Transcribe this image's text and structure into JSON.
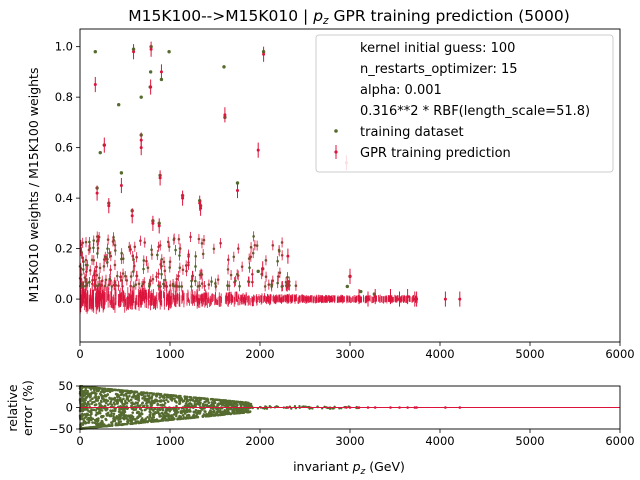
{
  "chart_data": [
    {
      "type": "scatter",
      "title": "M15K100-->M15K010 | p_z GPR training prediction (5000)",
      "title_parts": {
        "prefix": "M15K100-->M15K010 | ",
        "var": "p",
        "sub": "z",
        "suffix": " GPR training prediction (5000)"
      },
      "xlabel": "",
      "ylabel": "M15K010 weights / M15K100 weights",
      "xlim": [
        0,
        6000
      ],
      "ylim": [
        -0.17,
        1.07
      ],
      "xticks": [
        0,
        1000,
        2000,
        3000,
        4000,
        5000,
        6000
      ],
      "yticks": [
        0.0,
        0.2,
        0.4,
        0.6,
        0.8,
        1.0
      ],
      "xtick_labels": [
        "0",
        "1000",
        "2000",
        "3000",
        "4000",
        "5000",
        "6000"
      ],
      "ytick_labels": [
        "0.0",
        "0.2",
        "0.4",
        "0.6",
        "0.8",
        "1.0"
      ],
      "legend_position": "top-right",
      "legend": {
        "text_entries": [
          "kernel initial guess: 100",
          "n_restarts_optimizer: 15",
          "alpha: 0.001",
          "0.316**2 * RBF(length_scale=51.8)"
        ],
        "series_entries": [
          "training dataset",
          "GPR training prediction"
        ]
      },
      "colors": {
        "training": "#556b2f",
        "prediction": "#dc143c"
      },
      "series": [
        {
          "name": "training dataset",
          "marker": "dot",
          "x": [
            595,
            790,
            990,
            2040,
            170,
            430,
            785,
            905,
            1600,
            1610,
            680,
            780,
            680,
            270,
            225,
            1750,
            890,
            1140,
            1330,
            320,
            190,
            460,
            580,
            810,
            880,
            1340,
            1980,
            2030,
            3000,
            3270,
            3120,
            2970
          ],
          "y": [
            0.99,
            1.0,
            0.98,
            0.98,
            0.98,
            0.77,
            0.9,
            0.87,
            0.92,
            0.72,
            0.8,
            0.84,
            0.65,
            0.61,
            0.58,
            0.46,
            0.49,
            0.41,
            0.39,
            0.38,
            0.44,
            0.5,
            0.35,
            0.31,
            0.3,
            0.37,
            0.11,
            0.12,
            0.09,
            0.02,
            0.03,
            0.05
          ]
        },
        {
          "name": "GPR training prediction",
          "marker": "errorbar",
          "x": [
            595,
            790,
            2040,
            170,
            785,
            905,
            1610,
            680,
            680,
            270,
            1750,
            890,
            1140,
            1330,
            320,
            190,
            460,
            580,
            810,
            880,
            1340,
            1980,
            2030,
            2310,
            3000,
            2960,
            3280,
            3450,
            3550,
            3640,
            3720,
            3740,
            4060,
            4220,
            3100,
            3200
          ],
          "y": [
            0.98,
            0.99,
            0.97,
            0.85,
            0.84,
            0.9,
            0.73,
            0.6,
            0.63,
            0.61,
            0.43,
            0.48,
            0.4,
            0.38,
            0.37,
            0.42,
            0.45,
            0.33,
            0.3,
            0.29,
            0.36,
            0.59,
            0.12,
            0.17,
            0.09,
            0.54,
            0.01,
            0.01,
            0.0,
            0.01,
            0.0,
            0.0,
            0.0,
            0.0,
            0.01,
            0.0
          ],
          "yerr": [
            0.03,
            0.03,
            0.03,
            0.03,
            0.03,
            0.03,
            0.03,
            0.03,
            0.03,
            0.03,
            0.03,
            0.03,
            0.03,
            0.03,
            0.03,
            0.03,
            0.03,
            0.03,
            0.03,
            0.03,
            0.03,
            0.03,
            0.03,
            0.03,
            0.03,
            0.03,
            0.03,
            0.03,
            0.03,
            0.03,
            0.03,
            0.03,
            0.03,
            0.03,
            0.03,
            0.03
          ]
        },
        {
          "name": "",
          "marker": "dense_band",
          "x_range": [
            0,
            3750
          ],
          "y_center": 0.0,
          "y_spread": 0.05
        }
      ]
    },
    {
      "type": "scatter",
      "xlabel_parts": {
        "prefix": "invariant ",
        "var": "p",
        "sub": "z",
        "suffix": " (GeV)"
      },
      "ylabel_lines": [
        "relative",
        "error (%)"
      ],
      "xlim": [
        0,
        6000
      ],
      "ylim": [
        -50,
        50
      ],
      "xticks": [
        0,
        1000,
        2000,
        3000,
        4000,
        5000,
        6000
      ],
      "yticks": [
        -50,
        0,
        50
      ],
      "xtick_labels": [
        "0",
        "1000",
        "2000",
        "3000",
        "4000",
        "5000",
        "6000"
      ],
      "ytick_labels": [
        "−50",
        "0",
        "50"
      ],
      "reference_line": 0,
      "series": [
        {
          "name": "",
          "marker": "dot",
          "x_range": [
            0,
            4220
          ],
          "description_values": {
            "dense_until": 1900,
            "sparse_after": 2300
          }
        }
      ]
    }
  ]
}
